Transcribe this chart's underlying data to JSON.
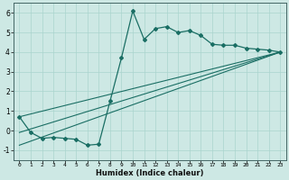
{
  "xlabel": "Humidex (Indice chaleur)",
  "background_color": "#cde8e4",
  "line_color": "#1a6e64",
  "xlim": [
    -0.5,
    23.5
  ],
  "ylim": [
    -1.5,
    6.5
  ],
  "yticks": [
    -1,
    0,
    1,
    2,
    3,
    4,
    5,
    6
  ],
  "xticks": [
    0,
    1,
    2,
    3,
    4,
    5,
    6,
    7,
    8,
    9,
    10,
    11,
    12,
    13,
    14,
    15,
    16,
    17,
    18,
    19,
    20,
    21,
    22,
    23
  ],
  "main_x": [
    0,
    1,
    2,
    3,
    4,
    5,
    6,
    7,
    8,
    9,
    10,
    11,
    12,
    13,
    14,
    15,
    16,
    17,
    18,
    19,
    20,
    21,
    22,
    23
  ],
  "main_y": [
    0.7,
    -0.1,
    -0.4,
    -0.35,
    -0.4,
    -0.45,
    -0.75,
    -0.7,
    1.5,
    3.7,
    6.1,
    4.65,
    5.2,
    5.3,
    5.0,
    5.1,
    4.85,
    4.4,
    4.35,
    4.35,
    4.2,
    4.15,
    4.1,
    4.0
  ],
  "line1_x": [
    0,
    23
  ],
  "line1_y": [
    0.7,
    4.0
  ],
  "line2_x": [
    0,
    23
  ],
  "line2_y": [
    -0.1,
    4.0
  ],
  "line3_x": [
    0,
    23
  ],
  "line3_y": [
    -0.75,
    4.0
  ],
  "grid_color": "#aad4ce"
}
